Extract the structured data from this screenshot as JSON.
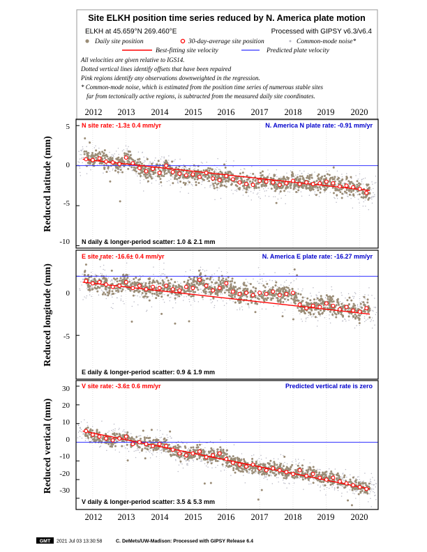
{
  "header": {
    "title": "Site ELKH position time series reduced by N. America plate motion",
    "site_location": "ELKH at 45.659°N 269.460°E",
    "processing": "Processed with GIPSY v6.3/v6.4",
    "legend": {
      "daily": "Daily site position",
      "avg30": "30-day-average site position",
      "common_mode": "Common-mode noise*",
      "best_fit": "Best-fitting site velocity",
      "predicted": "Predicted plate velocity"
    },
    "notes": [
      "All velocities are given relative to IGS14.",
      "Dotted vertical lines identify offsets that have been repaired",
      "Pink regions identify any observations downweighted in the regression.",
      "* Common-mode noise, which is estimated from the position time series of numerous stable sites",
      "far from tectonically active regions, is subtracted from the measured daily site coordinates."
    ]
  },
  "years": [
    "2012",
    "2013",
    "2014",
    "2015",
    "2016",
    "2017",
    "2018",
    "2019",
    "2020"
  ],
  "footer": {
    "logo": "GMT",
    "timestamp": "2021 Jul 03 13:30:58",
    "credit": "C. DeMets/UW-Madison: Processed with GIPSY Release 6.4"
  },
  "colors": {
    "daily": "#9a8c76",
    "common_mode": "#b8b8c4",
    "avg_marker": "#ff0000",
    "best_fit": "#ff0000",
    "predicted": "#3333ff",
    "site_rate_text": "#ff0000",
    "plate_rate_text": "#0000cc"
  },
  "panels": [
    {
      "ylabel": "Reduced latitude (mm)",
      "site_rate": "N site rate:  -1.3± 0.4 mm/yr",
      "plate_rate": "N. America N plate rate: -0.91 mm/yr",
      "scatter": "N daily & longer-period scatter:   1.0 &   2.1 mm",
      "ticks": [
        "5",
        "0",
        "-5",
        "-10"
      ]
    },
    {
      "ylabel": "Reduced longitude (mm)",
      "site_rate": "E site rate:  -16.6± 0.4 mm/yr",
      "plate_rate": "N. America E plate rate: -16.27 mm/yr",
      "scatter": "E daily & longer-period scatter:   0.9 &   1.9 mm",
      "ticks": [
        "0",
        "-5"
      ]
    },
    {
      "ylabel": "Reduced vertical (mm)",
      "site_rate": "V site rate:  -3.6± 0.6 mm/yr",
      "plate_rate": "Predicted vertical rate is zero",
      "scatter": "V daily & longer-period scatter:   3.5 &   5.3 mm",
      "ticks": [
        "30",
        "20",
        "10",
        "0",
        "-10",
        "-20",
        "-30"
      ]
    }
  ],
  "chart_data": [
    {
      "type": "scatter",
      "ylabel": "Reduced latitude (mm)",
      "xlim": [
        2011.5,
        2020.55
      ],
      "ylim": [
        -10.3,
        5.8
      ],
      "yticks": [
        5,
        0,
        -5,
        -10
      ],
      "series": [
        {
          "name": "30-day-average site position",
          "x": [
            2011.8,
            2012.0,
            2012.2,
            2012.4,
            2012.6,
            2012.8,
            2013.0,
            2013.2,
            2013.4,
            2013.6,
            2013.8,
            2014.0,
            2014.2,
            2014.4,
            2014.6,
            2014.8,
            2015.0,
            2015.2,
            2015.4,
            2015.6,
            2015.8,
            2016.0,
            2016.2,
            2016.4,
            2016.6,
            2016.8,
            2017.0,
            2017.2,
            2017.4,
            2017.6,
            2017.8,
            2018.0,
            2018.2,
            2018.4,
            2018.6,
            2018.8,
            2019.0,
            2019.2,
            2019.4,
            2019.6,
            2019.8,
            2020.0,
            2020.2
          ],
          "y": [
            0.8,
            0.7,
            0.9,
            0.5,
            0.4,
            0.2,
            1.0,
            0.3,
            -0.3,
            -0.7,
            -0.4,
            -0.9,
            0.0,
            -0.8,
            -1.0,
            -1.2,
            -1.1,
            -1.4,
            -0.9,
            -1.6,
            -1.8,
            -1.3,
            -1.7,
            -2.1,
            -2.3,
            -2.4,
            -1.9,
            -2.0,
            -2.1,
            -2.4,
            -2.2,
            -1.9,
            -2.3,
            -2.1,
            -2.3,
            -2.2,
            -2.0,
            -2.2,
            -2.6,
            -2.5,
            -2.7,
            -2.9,
            -3.4
          ]
        },
        {
          "name": "Best-fitting site velocity",
          "x": [
            2011.7,
            2020.3
          ],
          "y": [
            0.8,
            -3.1
          ]
        },
        {
          "name": "Predicted plate velocity",
          "x": [
            2011.5,
            2020.55
          ],
          "y": [
            0,
            0
          ]
        }
      ]
    },
    {
      "type": "scatter",
      "ylabel": "Reduced longitude (mm)",
      "xlim": [
        2011.5,
        2020.55
      ],
      "ylim": [
        -8.7,
        2.2
      ],
      "yticks": [
        0,
        -5
      ],
      "series": [
        {
          "name": "30-day-average site position",
          "x": [
            2011.8,
            2012.0,
            2012.2,
            2012.4,
            2012.6,
            2012.8,
            2013.0,
            2013.2,
            2013.4,
            2013.6,
            2013.8,
            2014.0,
            2014.2,
            2014.4,
            2014.6,
            2014.8,
            2015.0,
            2015.2,
            2015.4,
            2015.6,
            2015.8,
            2016.0,
            2016.2,
            2016.4,
            2016.6,
            2016.8,
            2017.0,
            2017.2,
            2017.4,
            2017.6,
            2017.8,
            2018.0,
            2018.2,
            2018.4,
            2018.6,
            2018.8,
            2019.0,
            2019.2,
            2019.4,
            2019.6,
            2019.8,
            2020.0,
            2020.2
          ],
          "y": [
            -0.4,
            -0.6,
            -0.5,
            -0.7,
            -0.9,
            -0.8,
            -0.5,
            -1.0,
            -0.8,
            -1.1,
            -0.9,
            -1.0,
            -0.8,
            -1.1,
            -1.2,
            -0.9,
            -1.0,
            -0.3,
            -0.8,
            -1.2,
            -1.0,
            -0.6,
            -1.3,
            -1.5,
            -1.4,
            -1.6,
            -1.4,
            -1.5,
            -1.3,
            -1.6,
            -1.5,
            -1.4,
            -2.4,
            -2.7,
            -2.5,
            -2.6,
            -2.3,
            -2.5,
            -2.8,
            -2.6,
            -2.9,
            -3.0,
            -2.7
          ]
        },
        {
          "name": "Best-fitting site velocity",
          "x": [
            2011.7,
            2020.3
          ],
          "y": [
            -0.5,
            -3.2
          ]
        },
        {
          "name": "Predicted plate velocity",
          "x": [
            2011.5,
            2020.55
          ],
          "y": [
            0,
            0
          ]
        }
      ]
    },
    {
      "type": "scatter",
      "ylabel": "Reduced vertical (mm)",
      "xlim": [
        2011.5,
        2020.55
      ],
      "ylim": [
        -36,
        33
      ],
      "yticks": [
        30,
        20,
        10,
        0,
        -10,
        -20,
        -30
      ],
      "series": [
        {
          "name": "30-day-average site position",
          "x": [
            2011.8,
            2012.0,
            2012.2,
            2012.4,
            2012.6,
            2012.8,
            2013.0,
            2013.2,
            2013.4,
            2013.6,
            2013.8,
            2014.0,
            2014.2,
            2014.4,
            2014.6,
            2014.8,
            2015.0,
            2015.2,
            2015.4,
            2015.6,
            2015.8,
            2016.0,
            2016.2,
            2016.4,
            2016.6,
            2016.8,
            2017.0,
            2017.2,
            2017.4,
            2017.6,
            2017.8,
            2018.0,
            2018.2,
            2018.4,
            2018.6,
            2018.8,
            2019.0,
            2019.2,
            2019.4,
            2019.6,
            2019.8,
            2020.0,
            2020.2
          ],
          "y": [
            6,
            4,
            3,
            2,
            1,
            2,
            3,
            -1,
            0,
            -1,
            -2,
            -1,
            -2,
            -4,
            -6,
            -7,
            -6,
            -5,
            -8,
            -7,
            -6,
            -9,
            -11,
            -12,
            -13,
            -12,
            -14,
            -15,
            -14,
            -15,
            -16,
            -17,
            -15,
            -18,
            -17,
            -19,
            -20,
            -19,
            -21,
            -22,
            -23,
            -24,
            -25
          ]
        },
        {
          "name": "Best-fitting site velocity",
          "x": [
            2011.7,
            2020.3
          ],
          "y": [
            6,
            -25
          ]
        },
        {
          "name": "Predicted plate velocity",
          "x": [
            2011.5,
            2020.55
          ],
          "y": [
            0,
            0
          ]
        }
      ]
    }
  ]
}
